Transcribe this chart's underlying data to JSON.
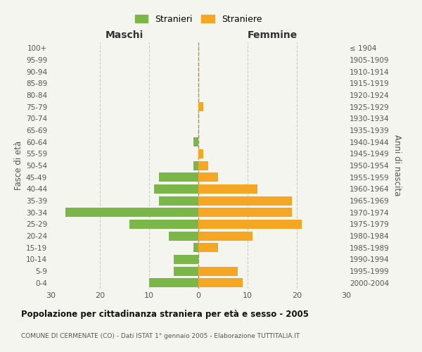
{
  "age_groups": [
    "0-4",
    "5-9",
    "10-14",
    "15-19",
    "20-24",
    "25-29",
    "30-34",
    "35-39",
    "40-44",
    "45-49",
    "50-54",
    "55-59",
    "60-64",
    "65-69",
    "70-74",
    "75-79",
    "80-84",
    "85-89",
    "90-94",
    "95-99",
    "100+"
  ],
  "birth_years": [
    "2000-2004",
    "1995-1999",
    "1990-1994",
    "1985-1989",
    "1980-1984",
    "1975-1979",
    "1970-1974",
    "1965-1969",
    "1960-1964",
    "1955-1959",
    "1950-1954",
    "1945-1949",
    "1940-1944",
    "1935-1939",
    "1930-1934",
    "1925-1929",
    "1920-1924",
    "1915-1919",
    "1910-1914",
    "1905-1909",
    "≤ 1904"
  ],
  "males": [
    10,
    5,
    5,
    1,
    6,
    14,
    27,
    8,
    9,
    8,
    1,
    0,
    1,
    0,
    0,
    0,
    0,
    0,
    0,
    0,
    0
  ],
  "females": [
    9,
    8,
    0,
    4,
    11,
    21,
    19,
    19,
    12,
    4,
    2,
    1,
    0,
    0,
    0,
    1,
    0,
    0,
    0,
    0,
    0
  ],
  "male_color": "#7ab648",
  "female_color": "#f5a623",
  "male_label": "Stranieri",
  "female_label": "Straniere",
  "title": "Popolazione per cittadinanza straniera per età e sesso - 2005",
  "subtitle": "COMUNE DI CERMENATE (CO) - Dati ISTAT 1° gennaio 2005 - Elaborazione TUTTITALIA.IT",
  "xlabel_left": "Maschi",
  "xlabel_right": "Femmine",
  "ylabel_left": "Fasce di età",
  "ylabel_right": "Anni di nascita",
  "xlim": 30,
  "bg_color": "#f5f5f0",
  "grid_color": "#cccccc"
}
